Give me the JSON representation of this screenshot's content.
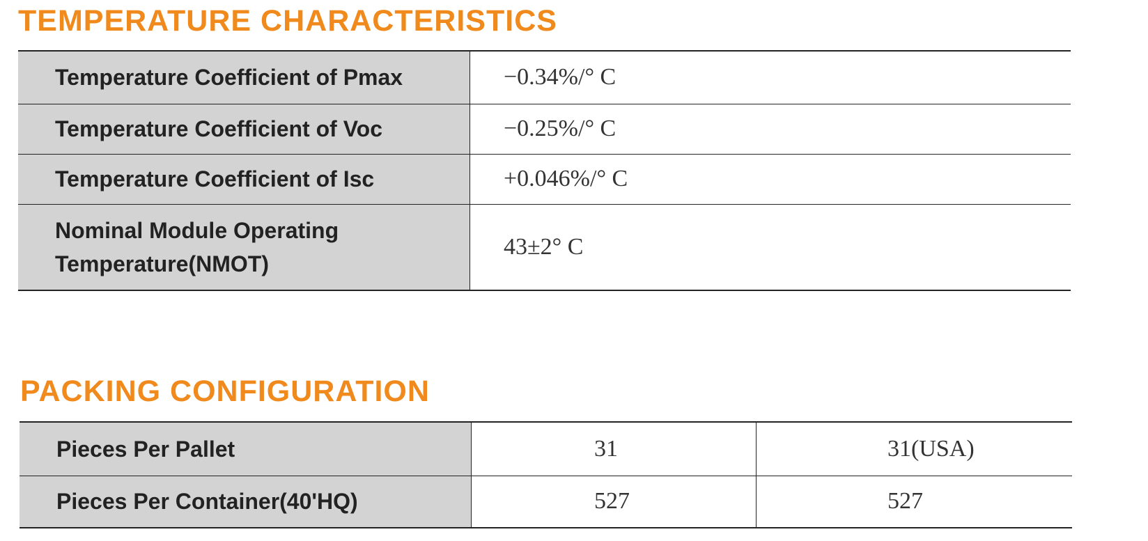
{
  "temperature": {
    "title": "TEMPERATURE CHARACTERISTICS",
    "rows": [
      [
        "Temperature Coefficient of Pmax",
        "−0.34%/° C"
      ],
      [
        "Temperature Coefficient of Voc",
        "−0.25%/° C"
      ],
      [
        "Temperature Coefficient of Isc",
        "+0.046%/° C"
      ],
      [
        "Nominal Module Operating Temperature(NMOT)",
        "43±2° C"
      ]
    ]
  },
  "packing": {
    "title": "PACKING CONFIGURATION",
    "rows": [
      [
        "Pieces Per Pallet",
        "31",
        "31(USA)"
      ],
      [
        "Pieces Per Container(40'HQ)",
        "527",
        "527"
      ]
    ]
  }
}
